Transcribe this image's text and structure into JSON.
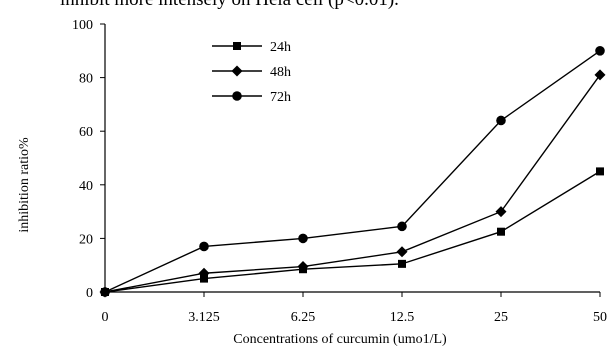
{
  "caption_fragment": "inhibit more intensely on Hela cell (p<0.01).",
  "chart_data": {
    "type": "line",
    "title": "",
    "xlabel": "Concentrations of curcumin (umo1/L)",
    "ylabel": "inhibition ratio%",
    "categories": [
      "0",
      "3.125",
      "6.25",
      "12.5",
      "25",
      "50"
    ],
    "ylim": [
      0,
      100
    ],
    "yticks": [
      0,
      20,
      40,
      60,
      80,
      100
    ],
    "grid": false,
    "legend_position": "top-left",
    "series": [
      {
        "name": "24h",
        "marker": "square",
        "values": [
          0,
          5,
          8.5,
          10.5,
          22.5,
          45
        ]
      },
      {
        "name": "48h",
        "marker": "diamond",
        "values": [
          0,
          7,
          9.5,
          15,
          30,
          81
        ]
      },
      {
        "name": "72h",
        "marker": "circle",
        "values": [
          0,
          17,
          20,
          24.5,
          64,
          90
        ]
      }
    ],
    "line_color": "#000000"
  }
}
